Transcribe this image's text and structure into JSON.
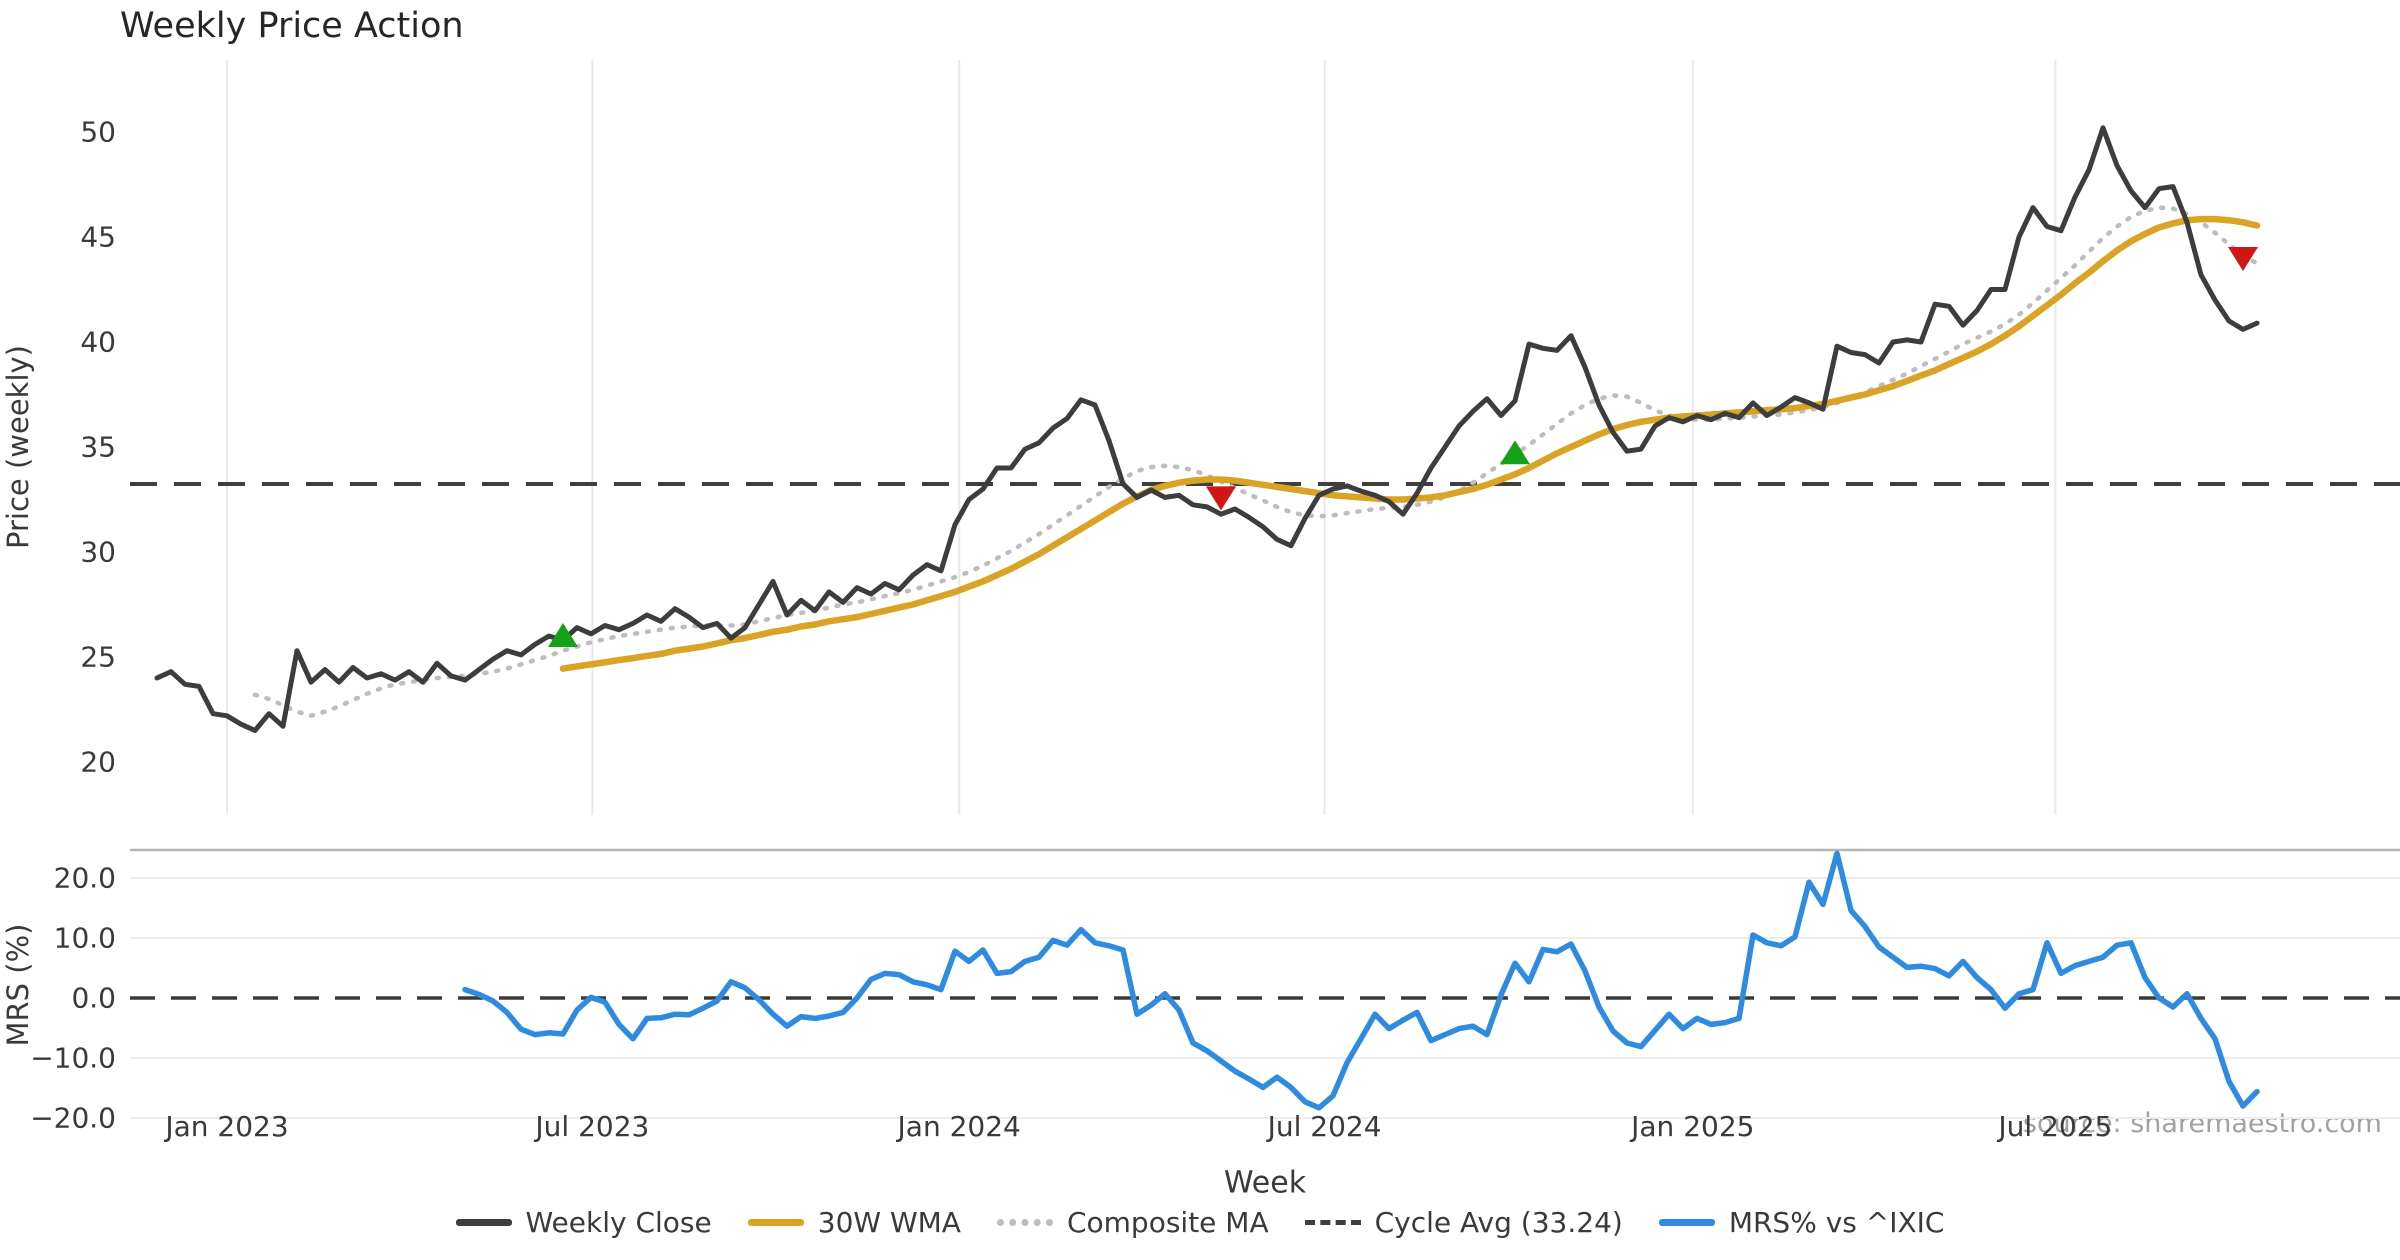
{
  "title": "Weekly Price Action",
  "source_note": "source: sharemaestro.com",
  "colors": {
    "close": "#3d3d3d",
    "wma": "#d9a426",
    "composite": "#bdbdbd",
    "cycle_avg": "#3f3f3f",
    "mrs": "#2e8be0",
    "buy_marker": "#16a016",
    "sell_marker": "#cf1717",
    "gridline": "#e9e9e9",
    "mrs_gridline": "#ededed",
    "spine": "#b4b4b4",
    "tick_text": "#3a3a3a"
  },
  "legend": [
    {
      "label": "Weekly Close",
      "style": "solid",
      "color": "#3d3d3d"
    },
    {
      "label": "30W WMA",
      "style": "solid",
      "color": "#d9a426"
    },
    {
      "label": "Composite MA",
      "style": "dotted",
      "color": "#bdbdbd"
    },
    {
      "label": "Cycle Avg (33.24)",
      "style": "dashed",
      "color": "#3f3f3f"
    },
    {
      "label": "MRS% vs ^IXIC",
      "style": "solid",
      "color": "#2e8be0"
    }
  ],
  "chart_data": [
    {
      "type": "line",
      "title": "Weekly Price Action",
      "ylabel": "Price (weekly)",
      "ylim": [
        19.5,
        51.8
      ],
      "grid": "vertical-only",
      "yticks": [
        {
          "v": 50,
          "label": "50"
        },
        {
          "v": 45,
          "label": "45"
        },
        {
          "v": 40,
          "label": "40"
        },
        {
          "v": 35,
          "label": "35"
        },
        {
          "v": 30,
          "label": "30"
        },
        {
          "v": 25,
          "label": "25"
        },
        {
          "v": 20,
          "label": "20"
        }
      ],
      "cycle_avg": 33.24,
      "series": [
        {
          "name": "Weekly Close",
          "start_week": -5,
          "values": [
            24.0,
            24.3,
            23.7,
            23.6,
            22.3,
            22.2,
            21.8,
            21.5,
            22.3,
            21.7,
            25.3,
            23.8,
            24.4,
            23.8,
            24.5,
            24.0,
            24.2,
            23.9,
            24.3,
            23.8,
            24.7,
            24.1,
            23.9,
            24.4,
            24.9,
            25.3,
            25.1,
            25.6,
            26.0,
            25.8,
            26.4,
            26.1,
            26.5,
            26.3,
            26.6,
            27.0,
            26.7,
            27.3,
            26.9,
            26.4,
            26.6,
            25.9,
            26.4,
            27.5,
            28.6,
            27.0,
            27.7,
            27.2,
            28.1,
            27.6,
            28.3,
            28.0,
            28.5,
            28.2,
            28.9,
            29.4,
            29.1,
            31.3,
            32.5,
            33.0,
            34.0,
            34.0,
            34.9,
            35.2,
            35.9,
            36.35,
            37.25,
            37.0,
            35.3,
            33.25,
            32.6,
            32.95,
            32.6,
            32.7,
            32.25,
            32.15,
            31.8,
            32.05,
            31.65,
            31.2,
            30.6,
            30.3,
            31.6,
            32.7,
            33.0,
            33.15,
            32.9,
            32.7,
            32.4,
            31.8,
            32.8,
            34.0,
            35.0,
            36.0,
            36.7,
            37.3,
            36.5,
            37.2,
            39.9,
            39.7,
            39.6,
            40.3,
            38.8,
            37.0,
            35.7,
            34.8,
            34.9,
            36.0,
            36.4,
            36.2,
            36.5,
            36.3,
            36.6,
            36.4,
            37.1,
            36.5,
            36.9,
            37.35,
            37.1,
            36.8,
            39.8,
            39.5,
            39.4,
            39.0,
            40.0,
            40.1,
            40.0,
            41.8,
            41.7,
            40.8,
            41.5,
            42.5,
            42.5,
            45.0,
            46.4,
            45.5,
            45.3,
            46.9,
            48.2,
            50.2,
            48.4,
            47.2,
            46.4,
            47.3,
            47.4,
            45.7,
            43.2,
            42.0,
            41.0,
            40.6,
            40.9
          ]
        },
        {
          "name": "30W WMA",
          "start_week": 24,
          "values": [
            24.45,
            24.55,
            24.65,
            24.75,
            24.85,
            24.95,
            25.05,
            25.15,
            25.3,
            25.4,
            25.5,
            25.65,
            25.8,
            25.9,
            26.05,
            26.2,
            26.3,
            26.45,
            26.55,
            26.7,
            26.8,
            26.9,
            27.05,
            27.2,
            27.35,
            27.5,
            27.7,
            27.9,
            28.1,
            28.35,
            28.6,
            28.9,
            29.2,
            29.55,
            29.9,
            30.3,
            30.7,
            31.1,
            31.5,
            31.9,
            32.3,
            32.65,
            32.95,
            33.15,
            33.3,
            33.4,
            33.45,
            33.45,
            33.4,
            33.3,
            33.2,
            33.1,
            33.0,
            32.9,
            32.8,
            32.7,
            32.65,
            32.6,
            32.55,
            32.5,
            32.5,
            32.55,
            32.6,
            32.7,
            32.85,
            33.0,
            33.2,
            33.45,
            33.7,
            34.0,
            34.35,
            34.7,
            35.0,
            35.3,
            35.6,
            35.85,
            36.05,
            36.2,
            36.3,
            36.4,
            36.45,
            36.5,
            36.55,
            36.6,
            36.65,
            36.7,
            36.75,
            36.8,
            36.85,
            36.95,
            37.05,
            37.2,
            37.35,
            37.5,
            37.7,
            37.9,
            38.15,
            38.4,
            38.65,
            38.95,
            39.25,
            39.55,
            39.9,
            40.3,
            40.75,
            41.25,
            41.75,
            42.25,
            42.8,
            43.3,
            43.85,
            44.35,
            44.8,
            45.15,
            45.45,
            45.65,
            45.8,
            45.85,
            45.85,
            45.8,
            45.7,
            45.55
          ]
        },
        {
          "name": "Composite MA",
          "start_week": 2,
          "values": [
            23.2,
            23.0,
            22.7,
            22.4,
            22.2,
            22.4,
            22.65,
            22.95,
            23.25,
            23.5,
            23.7,
            23.8,
            23.9,
            24.0,
            24.05,
            24.1,
            24.2,
            24.3,
            24.45,
            24.65,
            24.85,
            25.05,
            25.3,
            25.5,
            25.7,
            25.85,
            26.0,
            26.1,
            26.2,
            26.3,
            26.4,
            26.45,
            26.5,
            26.5,
            26.5,
            26.55,
            26.7,
            26.85,
            27.0,
            27.1,
            27.2,
            27.35,
            27.5,
            27.6,
            27.75,
            27.9,
            28.05,
            28.2,
            28.4,
            28.6,
            28.8,
            29.05,
            29.35,
            29.7,
            30.05,
            30.45,
            30.85,
            31.3,
            31.75,
            32.2,
            32.65,
            33.1,
            33.5,
            33.85,
            34.05,
            34.1,
            34.05,
            33.9,
            33.65,
            33.35,
            33.05,
            32.75,
            32.45,
            32.15,
            31.9,
            31.75,
            31.7,
            31.75,
            31.85,
            31.95,
            32.05,
            32.1,
            32.15,
            32.25,
            32.4,
            32.6,
            32.9,
            33.3,
            33.75,
            34.2,
            34.65,
            35.1,
            35.6,
            36.1,
            36.6,
            37.0,
            37.3,
            37.45,
            37.4,
            37.1,
            36.75,
            36.5,
            36.35,
            36.3,
            36.3,
            36.35,
            36.4,
            36.45,
            36.5,
            36.55,
            36.65,
            36.75,
            36.9,
            37.1,
            37.35,
            37.6,
            37.9,
            38.2,
            38.5,
            38.85,
            39.2,
            39.55,
            39.9,
            40.2,
            40.5,
            40.85,
            41.3,
            41.85,
            42.45,
            43.05,
            43.65,
            44.3,
            44.95,
            45.5,
            45.95,
            46.25,
            46.4,
            46.35,
            46.1,
            45.7,
            45.2,
            44.65,
            44.1,
            43.75
          ]
        }
      ],
      "markers": {
        "buy": [
          {
            "week": 24,
            "value": 26.0
          },
          {
            "week": 92,
            "value": 34.7
          }
        ],
        "sell": [
          {
            "week": 71,
            "value": 32.6
          },
          {
            "week": 144,
            "value": 44.0
          }
        ]
      }
    },
    {
      "type": "line",
      "ylabel": "MRS (%)",
      "xlabel": "Week",
      "ylim": [
        -24,
        26
      ],
      "grid": "horizontal-only",
      "zero_line": 0,
      "yticks": [
        {
          "v": 20,
          "label": "20.0"
        },
        {
          "v": 10,
          "label": "10.0"
        },
        {
          "v": 0,
          "label": "0.0"
        },
        {
          "v": -10,
          "label": "−10.0"
        },
        {
          "v": -20,
          "label": "−20.0"
        }
      ],
      "series": [
        {
          "name": "MRS% vs ^IXIC",
          "start_week": 17,
          "values": [
            1.4,
            0.6,
            -0.5,
            -2.4,
            -5.2,
            -6.1,
            -5.8,
            -6.0,
            -2.0,
            0.1,
            -0.7,
            -4.4,
            -6.8,
            -3.4,
            -3.3,
            -2.7,
            -2.8,
            -1.7,
            -0.5,
            2.7,
            1.7,
            -0.3,
            -2.7,
            -4.7,
            -3.1,
            -3.4,
            -3.0,
            -2.4,
            0.0,
            3.1,
            4.1,
            3.9,
            2.7,
            2.2,
            1.4,
            7.8,
            6.1,
            8.0,
            4.1,
            4.4,
            6.1,
            6.8,
            9.6,
            8.8,
            11.4,
            9.2,
            8.7,
            8.0,
            -2.7,
            -1.2,
            0.7,
            -2.0,
            -7.5,
            -8.8,
            -10.5,
            -12.2,
            -13.5,
            -14.9,
            -13.2,
            -14.9,
            -17.3,
            -18.3,
            -16.3,
            -10.8,
            -6.8,
            -2.7,
            -5.1,
            -3.7,
            -2.4,
            -7.1,
            -6.1,
            -5.1,
            -4.7,
            -6.1,
            0.5,
            5.8,
            2.7,
            8.1,
            7.7,
            9.0,
            4.5,
            -1.5,
            -5.5,
            -7.5,
            -8.1,
            -5.4,
            -2.7,
            -5.1,
            -3.4,
            -4.4,
            -4.1,
            -3.4,
            10.5,
            9.2,
            8.7,
            10.2,
            19.3,
            15.6,
            24.1,
            14.6,
            11.9,
            8.5,
            6.8,
            5.1,
            5.3,
            4.9,
            3.7,
            6.1,
            3.4,
            1.4,
            -1.7,
            0.7,
            1.4,
            9.2,
            4.1,
            5.4,
            6.1,
            6.8,
            8.8,
            9.2,
            3.4,
            0.0,
            -1.5,
            0.7,
            -3.4,
            -6.8,
            -13.9,
            -18.0,
            -15.6
          ]
        }
      ]
    }
  ],
  "x_axis": {
    "label": "Week",
    "ticks": [
      {
        "label": "Jan 2023",
        "week": 0
      },
      {
        "label": "Jul 2023",
        "week": 26.1
      },
      {
        "label": "Jan 2024",
        "week": 52.3
      },
      {
        "label": "Jul 2024",
        "week": 78.4
      },
      {
        "label": "Jan 2025",
        "week": 104.7
      },
      {
        "label": "Jul 2025",
        "week": 130.6
      }
    ]
  }
}
